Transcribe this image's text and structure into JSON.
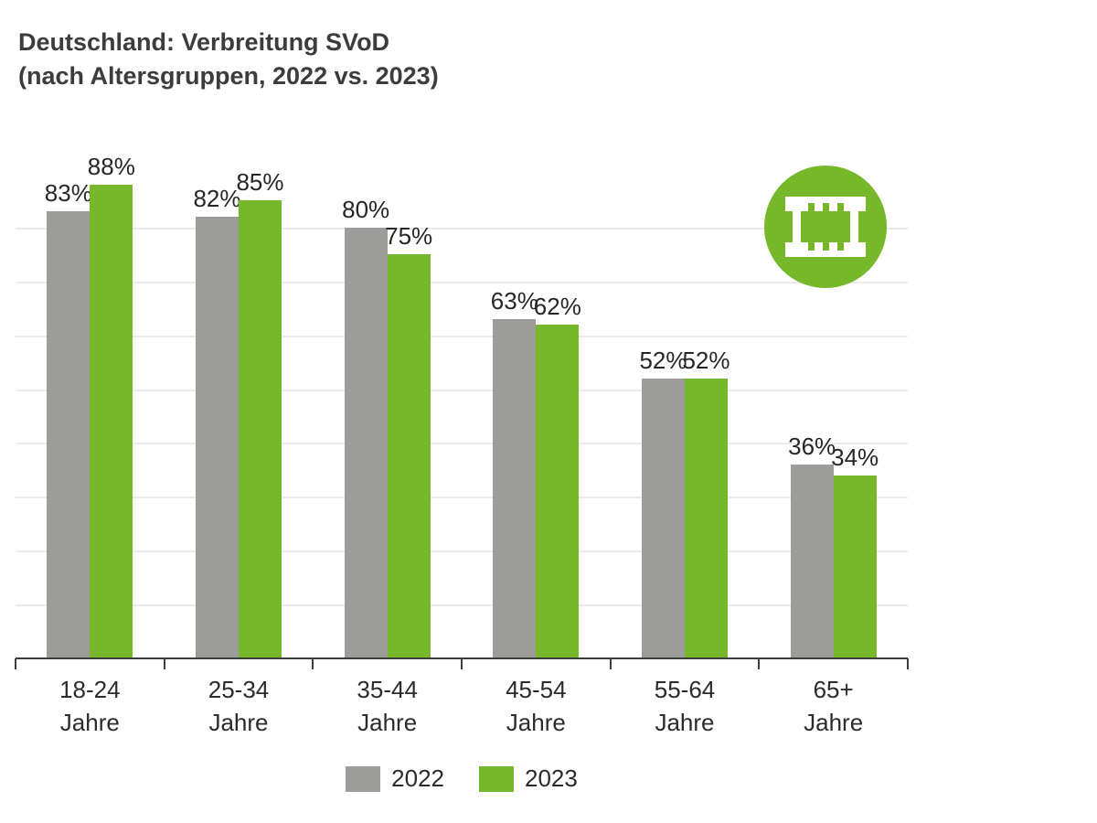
{
  "title": {
    "line1": "Deutschland: Verbreitung SVoD",
    "line2": "(nach Altersgruppen, 2022 vs. 2023)"
  },
  "icon": {
    "name": "film-strip",
    "background": "#76b82a",
    "glyph_color": "#ffffff"
  },
  "chart_data": {
    "type": "bar",
    "categories": [
      "18-24",
      "25-34",
      "35-44",
      "45-54",
      "55-64",
      "65+"
    ],
    "category_unit": "Jahre",
    "series": [
      {
        "name": "2022",
        "color": "#9c9c9b",
        "values": [
          83,
          82,
          80,
          63,
          52,
          36
        ]
      },
      {
        "name": "2023",
        "color": "#76b82a",
        "values": [
          88,
          85,
          75,
          62,
          52,
          34
        ]
      }
    ],
    "value_suffix": "%",
    "ylim": [
      0,
      100
    ],
    "grid": true,
    "gridlines_percent": [
      10,
      20,
      30,
      40,
      50,
      60,
      70,
      80
    ],
    "legend_position": "bottom",
    "colors": {
      "gridline": "#eaeaea",
      "axis": "#3d3d3c",
      "label_text": "#262626"
    }
  }
}
